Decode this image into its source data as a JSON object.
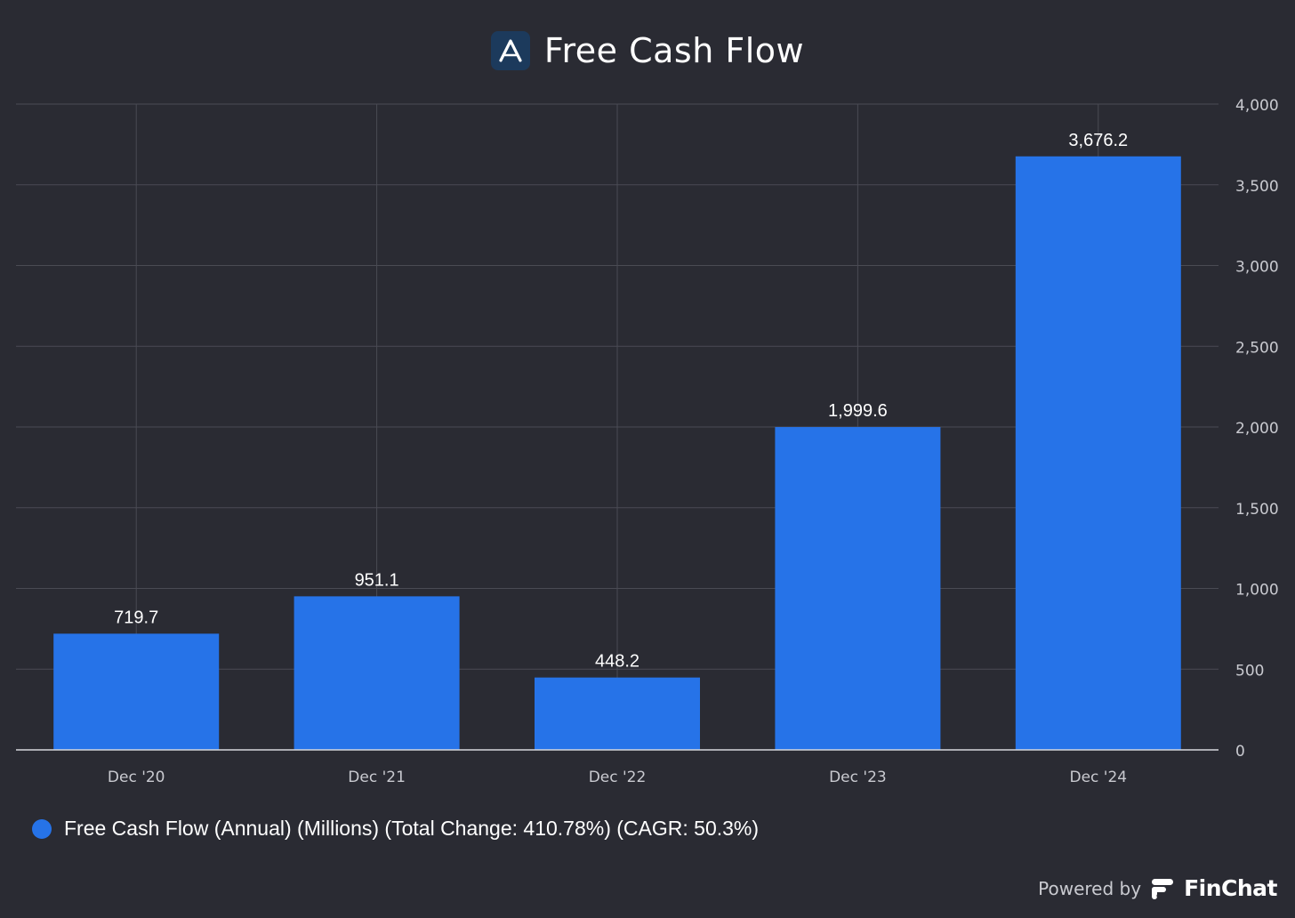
{
  "header": {
    "title": "Free Cash Flow",
    "logo_icon": "letter-a-logo-icon"
  },
  "chart_data": {
    "type": "bar",
    "title": "Free Cash Flow",
    "categories": [
      "Dec '20",
      "Dec '21",
      "Dec '22",
      "Dec '23",
      "Dec '24"
    ],
    "series": [
      {
        "name": "Free Cash Flow (Annual) (Millions) (Total Change: 410.78%) (CAGR: 50.3%)",
        "values": [
          719.7,
          951.1,
          448.2,
          1999.6,
          3676.2
        ],
        "value_labels": [
          "719.7",
          "951.1",
          "448.2",
          "1,999.6",
          "3,676.2"
        ],
        "color": "#2673e8"
      }
    ],
    "y_ticks": [
      0,
      500,
      1000,
      1500,
      2000,
      2500,
      3000,
      3500,
      4000
    ],
    "y_tick_labels": [
      "0",
      "500",
      "1,000",
      "1,500",
      "2,000",
      "2,500",
      "3,000",
      "3,500",
      "4,000"
    ],
    "ylim": [
      0,
      4000
    ],
    "y_axis_side": "right",
    "grid": true,
    "legend_position": "bottom-left"
  },
  "legend": {
    "label": "Free Cash Flow (Annual) (Millions) (Total Change: 410.78%) (CAGR: 50.3%)"
  },
  "footer": {
    "powered_by": "Powered by",
    "brand": "FinChat",
    "brand_icon": "finchat-logo-icon"
  },
  "colors": {
    "background": "#2a2b33",
    "bar": "#2673e8",
    "grid": "#4a4b54",
    "text": "#ffffff",
    "muted_text": "#c9cad0"
  }
}
